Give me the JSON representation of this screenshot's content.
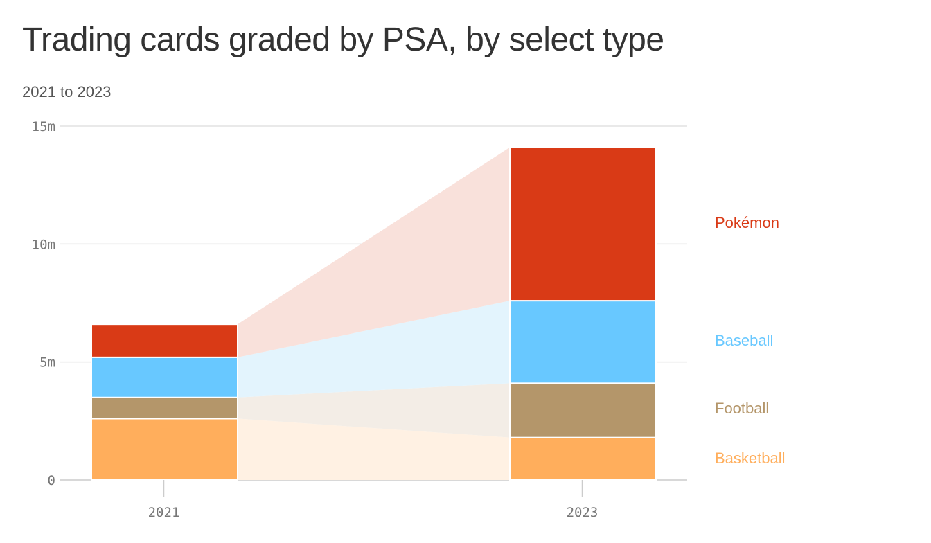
{
  "title": "Trading cards graded by PSA, by select type",
  "subtitle": "2021 to 2023",
  "chart_data": {
    "type": "bar",
    "stacked": true,
    "title": "Trading cards graded by PSA, by select type",
    "subtitle": "2021 to 2023",
    "categories": [
      "2021",
      "2023"
    ],
    "ylim": [
      0,
      15
    ],
    "yticks": [
      {
        "value": 0,
        "label": "0"
      },
      {
        "value": 5,
        "label": "5m"
      },
      {
        "value": 10,
        "label": "10m"
      },
      {
        "value": 15,
        "label": "15m"
      }
    ],
    "grid": true,
    "legend_placement": "right",
    "series": [
      {
        "name": "Basketball",
        "color": "#FFAE5C",
        "band_color": "#FFF1E3",
        "values": [
          2.6,
          1.8
        ]
      },
      {
        "name": "Football",
        "color": "#B4966A",
        "band_color": "#F3EDE6",
        "values": [
          0.9,
          2.3
        ]
      },
      {
        "name": "Baseball",
        "color": "#68C8FF",
        "band_color": "#E3F4FD",
        "values": [
          1.7,
          3.5
        ]
      },
      {
        "name": "Pokémon",
        "color": "#D93A16",
        "band_color": "#F9E1DB",
        "values": [
          1.4,
          6.5
        ]
      }
    ]
  }
}
